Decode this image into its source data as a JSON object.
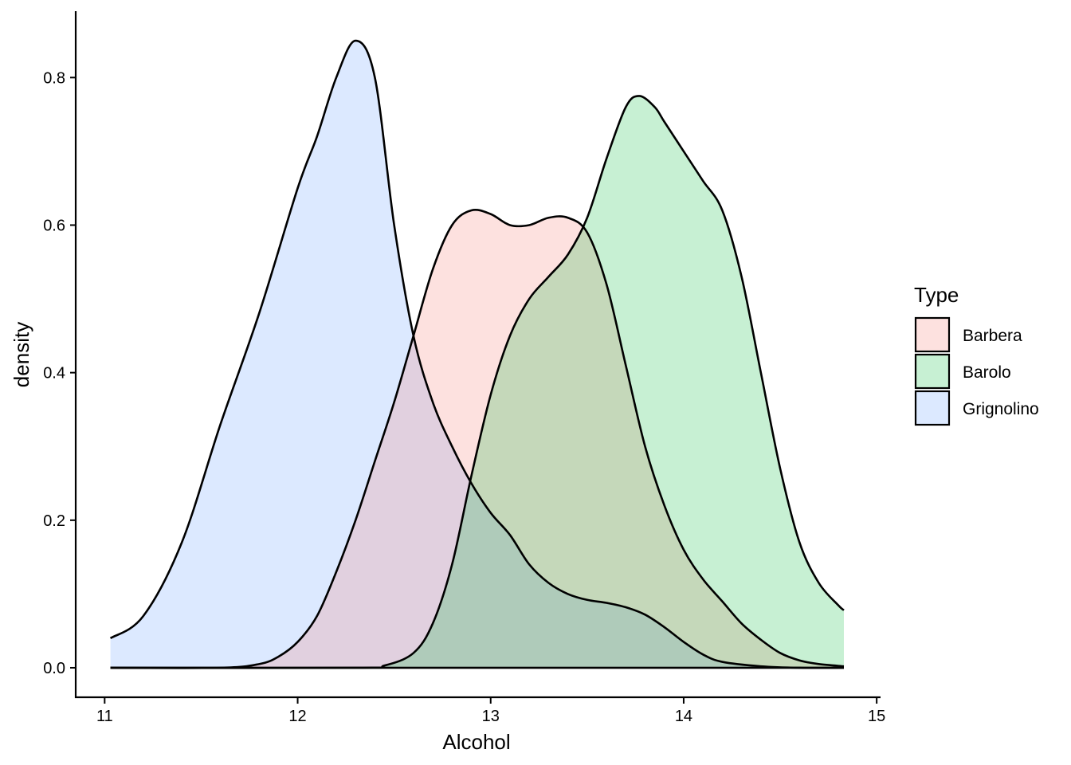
{
  "chart_data": {
    "type": "area",
    "xlabel": "Alcohol",
    "ylabel": "density",
    "xlim": [
      10.85,
      15.02
    ],
    "ylim": [
      -0.04,
      0.89
    ],
    "x_ticks": [
      "11",
      "12",
      "13",
      "14",
      "15"
    ],
    "y_ticks": [
      "0.0",
      "0.2",
      "0.4",
      "0.6",
      "0.8"
    ],
    "grid": false,
    "legend": {
      "title": "Type",
      "position": "right"
    },
    "series": [
      {
        "name": "Grignolino",
        "color": "#619CFF",
        "points": [
          [
            11.03,
            0.04
          ],
          [
            11.2,
            0.07
          ],
          [
            11.4,
            0.17
          ],
          [
            11.6,
            0.33
          ],
          [
            11.8,
            0.48
          ],
          [
            12.0,
            0.65
          ],
          [
            12.1,
            0.72
          ],
          [
            12.2,
            0.8
          ],
          [
            12.3,
            0.85
          ],
          [
            12.4,
            0.8
          ],
          [
            12.5,
            0.6
          ],
          [
            12.6,
            0.45
          ],
          [
            12.7,
            0.36
          ],
          [
            12.8,
            0.3
          ],
          [
            12.9,
            0.25
          ],
          [
            13.0,
            0.21
          ],
          [
            13.1,
            0.18
          ],
          [
            13.2,
            0.14
          ],
          [
            13.3,
            0.115
          ],
          [
            13.4,
            0.1
          ],
          [
            13.5,
            0.092
          ],
          [
            13.6,
            0.088
          ],
          [
            13.7,
            0.082
          ],
          [
            13.8,
            0.072
          ],
          [
            13.9,
            0.055
          ],
          [
            14.0,
            0.035
          ],
          [
            14.1,
            0.018
          ],
          [
            14.2,
            0.008
          ],
          [
            14.4,
            0.002
          ],
          [
            14.6,
            0.0
          ],
          [
            14.83,
            0.0
          ]
        ]
      },
      {
        "name": "Barbera",
        "color": "#F8766D",
        "points": [
          [
            11.03,
            0.0
          ],
          [
            11.6,
            0.0
          ],
          [
            11.8,
            0.005
          ],
          [
            11.9,
            0.015
          ],
          [
            12.0,
            0.035
          ],
          [
            12.1,
            0.07
          ],
          [
            12.2,
            0.13
          ],
          [
            12.3,
            0.2
          ],
          [
            12.4,
            0.28
          ],
          [
            12.5,
            0.36
          ],
          [
            12.6,
            0.45
          ],
          [
            12.7,
            0.54
          ],
          [
            12.8,
            0.6
          ],
          [
            12.9,
            0.62
          ],
          [
            13.0,
            0.615
          ],
          [
            13.1,
            0.6
          ],
          [
            13.2,
            0.6
          ],
          [
            13.3,
            0.61
          ],
          [
            13.4,
            0.61
          ],
          [
            13.5,
            0.59
          ],
          [
            13.6,
            0.52
          ],
          [
            13.7,
            0.41
          ],
          [
            13.8,
            0.3
          ],
          [
            13.9,
            0.22
          ],
          [
            14.0,
            0.16
          ],
          [
            14.1,
            0.12
          ],
          [
            14.2,
            0.09
          ],
          [
            14.3,
            0.06
          ],
          [
            14.4,
            0.038
          ],
          [
            14.5,
            0.02
          ],
          [
            14.6,
            0.01
          ],
          [
            14.7,
            0.005
          ],
          [
            14.83,
            0.002
          ]
        ]
      },
      {
        "name": "Barolo",
        "color": "#00BA38",
        "points": [
          [
            11.03,
            0.0
          ],
          [
            12.3,
            0.0
          ],
          [
            12.45,
            0.003
          ],
          [
            12.6,
            0.02
          ],
          [
            12.7,
            0.06
          ],
          [
            12.8,
            0.14
          ],
          [
            12.9,
            0.26
          ],
          [
            13.0,
            0.37
          ],
          [
            13.1,
            0.45
          ],
          [
            13.2,
            0.5
          ],
          [
            13.3,
            0.53
          ],
          [
            13.4,
            0.56
          ],
          [
            13.5,
            0.61
          ],
          [
            13.6,
            0.69
          ],
          [
            13.7,
            0.76
          ],
          [
            13.77,
            0.775
          ],
          [
            13.85,
            0.76
          ],
          [
            13.9,
            0.74
          ],
          [
            14.0,
            0.7
          ],
          [
            14.1,
            0.66
          ],
          [
            14.2,
            0.62
          ],
          [
            14.3,
            0.53
          ],
          [
            14.4,
            0.4
          ],
          [
            14.5,
            0.27
          ],
          [
            14.6,
            0.17
          ],
          [
            14.7,
            0.115
          ],
          [
            14.8,
            0.085
          ],
          [
            14.83,
            0.078
          ]
        ]
      }
    ]
  }
}
